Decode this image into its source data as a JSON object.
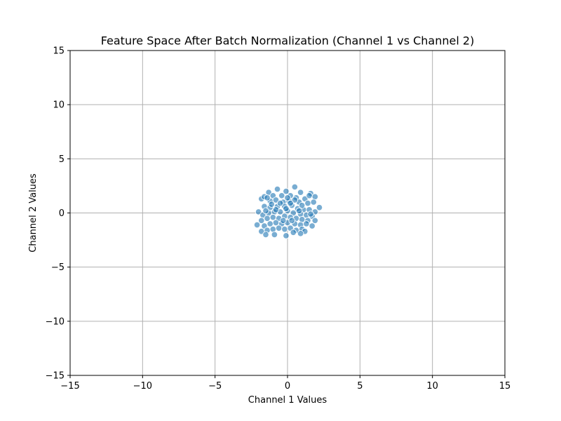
{
  "chart_data": {
    "type": "scatter",
    "title": "Feature Space After Batch Normalization (Channel 1 vs Channel 2)",
    "xlabel": "Channel 1 Values",
    "ylabel": "Channel 2 Values",
    "xlim": [
      -15,
      15
    ],
    "ylim": [
      -15,
      15
    ],
    "xticks": [
      -15,
      -10,
      -5,
      0,
      5,
      10,
      15
    ],
    "yticks": [
      -15,
      -10,
      -5,
      0,
      5,
      10,
      15
    ],
    "xtick_labels": [
      "−15",
      "−10",
      "−5",
      "0",
      "5",
      "10",
      "15"
    ],
    "ytick_labels": [
      "−15",
      "−10",
      "−5",
      "0",
      "5",
      "10",
      "15"
    ],
    "grid": true,
    "point_color": "#1f77b4",
    "point_edge_color": "#ffffff",
    "point_alpha": 0.6,
    "points": [
      [
        0.5,
        2.4
      ],
      [
        -0.7,
        2.2
      ],
      [
        -0.1,
        2.0
      ],
      [
        -1.3,
        1.9
      ],
      [
        0.9,
        1.9
      ],
      [
        1.6,
        1.8
      ],
      [
        -1.8,
        1.3
      ],
      [
        1.9,
        1.5
      ],
      [
        -1.6,
        1.5
      ],
      [
        -1.0,
        1.6
      ],
      [
        -0.4,
        1.6
      ],
      [
        0.2,
        1.6
      ],
      [
        0.6,
        1.4
      ],
      [
        1.2,
        1.3
      ],
      [
        1.4,
        0.9
      ],
      [
        -1.2,
        1.1
      ],
      [
        -0.8,
        1.2
      ],
      [
        -0.3,
        1.0
      ],
      [
        0.1,
        1.1
      ],
      [
        0.8,
        1.0
      ],
      [
        1.8,
        1.0
      ],
      [
        2.2,
        0.5
      ],
      [
        -2.0,
        0.1
      ],
      [
        -1.6,
        0.6
      ],
      [
        -1.2,
        0.5
      ],
      [
        -0.7,
        0.6
      ],
      [
        -0.2,
        0.6
      ],
      [
        0.3,
        0.7
      ],
      [
        0.7,
        0.4
      ],
      [
        1.1,
        0.3
      ],
      [
        1.5,
        0.3
      ],
      [
        1.9,
        0.1
      ],
      [
        -1.7,
        -0.2
      ],
      [
        -1.3,
        0.0
      ],
      [
        -0.9,
        0.1
      ],
      [
        -0.5,
        0.1
      ],
      [
        0.0,
        0.2
      ],
      [
        0.4,
        0.0
      ],
      [
        0.9,
        -0.1
      ],
      [
        1.3,
        -0.2
      ],
      [
        1.7,
        -0.3
      ],
      [
        -2.1,
        -1.1
      ],
      [
        -1.8,
        -0.7
      ],
      [
        -1.4,
        -0.5
      ],
      [
        -1.0,
        -0.4
      ],
      [
        -0.6,
        -0.5
      ],
      [
        -0.2,
        -0.3
      ],
      [
        0.2,
        -0.4
      ],
      [
        0.6,
        -0.5
      ],
      [
        1.0,
        -0.6
      ],
      [
        1.4,
        -0.7
      ],
      [
        1.9,
        -0.7
      ],
      [
        -1.6,
        -1.2
      ],
      [
        -1.2,
        -1.0
      ],
      [
        -0.8,
        -0.9
      ],
      [
        -0.4,
        -1.0
      ],
      [
        0.0,
        -0.9
      ],
      [
        0.5,
        -1.0
      ],
      [
        0.9,
        -1.1
      ],
      [
        1.3,
        -1.0
      ],
      [
        1.7,
        -1.2
      ],
      [
        -1.8,
        -1.7
      ],
      [
        -1.4,
        -1.6
      ],
      [
        -1.0,
        -1.5
      ],
      [
        -0.6,
        -1.4
      ],
      [
        -0.2,
        -1.5
      ],
      [
        0.2,
        -1.4
      ],
      [
        0.6,
        -1.6
      ],
      [
        1.0,
        -1.5
      ],
      [
        1.2,
        -1.7
      ],
      [
        -1.5,
        -2.0
      ],
      [
        -0.9,
        -2.0
      ],
      [
        -0.1,
        -2.1
      ],
      [
        0.4,
        -1.8
      ],
      [
        0.9,
        -1.9
      ],
      [
        -1.1,
        0.8
      ],
      [
        -0.5,
        0.9
      ],
      [
        0.5,
        1.2
      ],
      [
        1.0,
        0.7
      ],
      [
        -1.4,
        1.4
      ],
      [
        0.0,
        1.4
      ],
      [
        1.5,
        1.6
      ],
      [
        -0.3,
        -0.7
      ],
      [
        0.3,
        -0.7
      ],
      [
        -0.8,
        0.3
      ],
      [
        0.8,
        0.2
      ],
      [
        -1.5,
        0.2
      ],
      [
        1.6,
        -0.1
      ],
      [
        -0.1,
        0.4
      ],
      [
        0.2,
        0.9
      ]
    ]
  }
}
